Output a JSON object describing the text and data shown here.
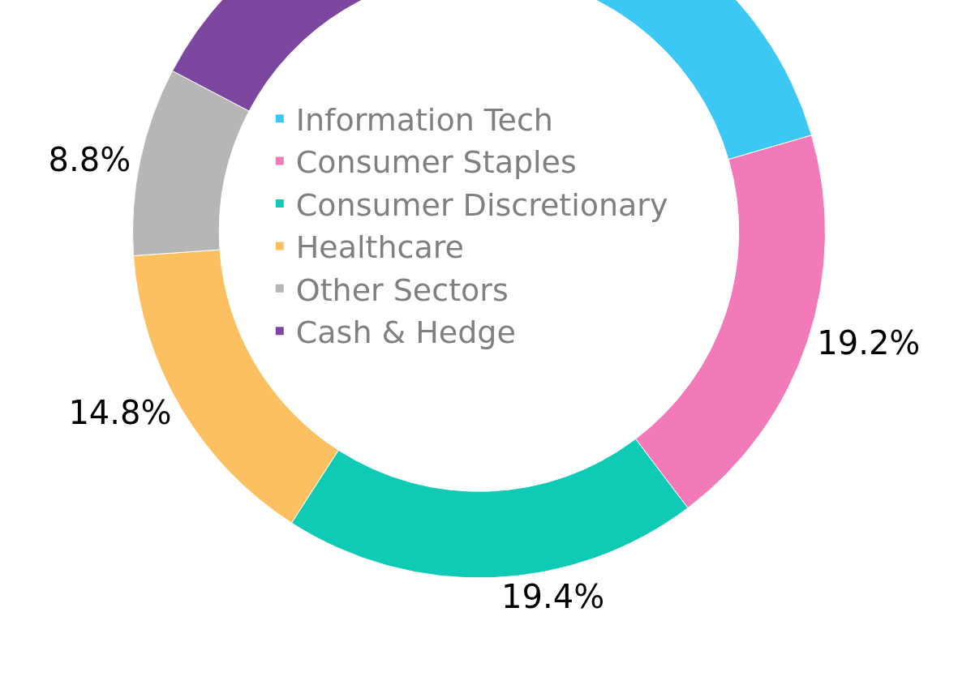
{
  "chart_data": {
    "type": "donut",
    "categories": [
      "Information Tech",
      "Consumer Staples",
      "Consumer Discretionary",
      "Healthcare",
      "Other Sectors",
      "Cash & Hedge"
    ],
    "values": [
      20.5,
      19.2,
      19.4,
      14.8,
      8.8,
      17.3
    ],
    "colors": [
      "#3cc8f5",
      "#f27ab8",
      "#0fcab5",
      "#fcc060",
      "#b5b6b5",
      "#7d47a0"
    ],
    "value_labels": [
      null,
      "19.2%",
      "19.4%",
      "14.8%",
      "8.8%",
      null
    ],
    "legend": "center"
  }
}
